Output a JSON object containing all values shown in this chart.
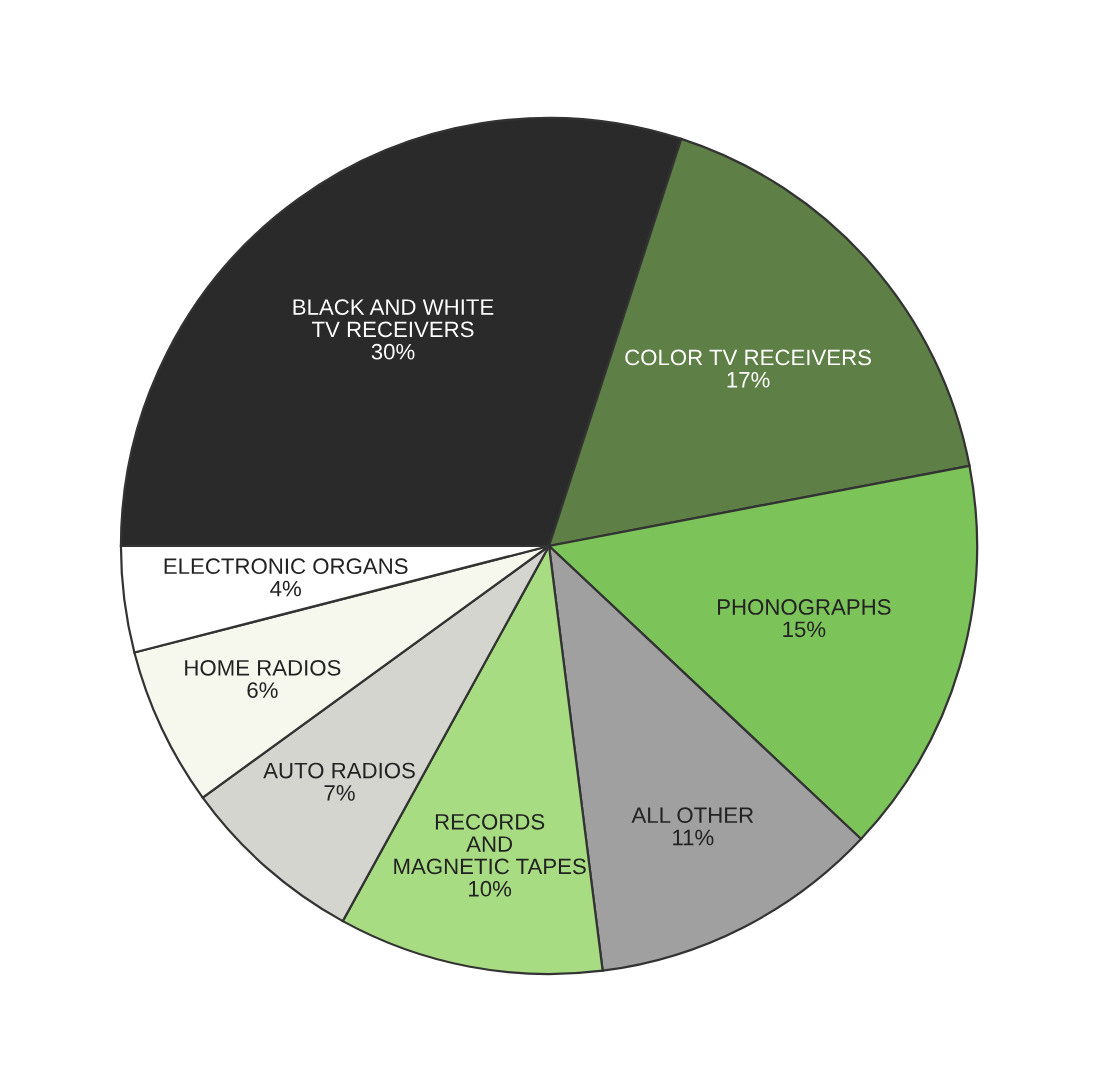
{
  "chart_data": {
    "type": "pie",
    "categories": [
      "BLACK AND WHITE\nTV RECEIVERS",
      "COLOR TV RECEIVERS",
      "PHONOGRAPHS",
      "ALL OTHER",
      "RECORDS\nAND\nMAGNETIC TAPES",
      "AUTO RADIOS",
      "HOME RADIOS",
      "ELECTRONIC ORGANS"
    ],
    "values": [
      30,
      17,
      15,
      11,
      10,
      7,
      6,
      4
    ],
    "value_labels": [
      "30%",
      "17%",
      "15%",
      "11%",
      "10%",
      "7%",
      "6%",
      "4%"
    ],
    "colors": [
      "#2a2a2a",
      "#5e7f46",
      "#7cc45a",
      "#a0a0a0",
      "#a8dc82",
      "#d5d5cf",
      "#f6f8ee",
      "#ffffff"
    ]
  }
}
